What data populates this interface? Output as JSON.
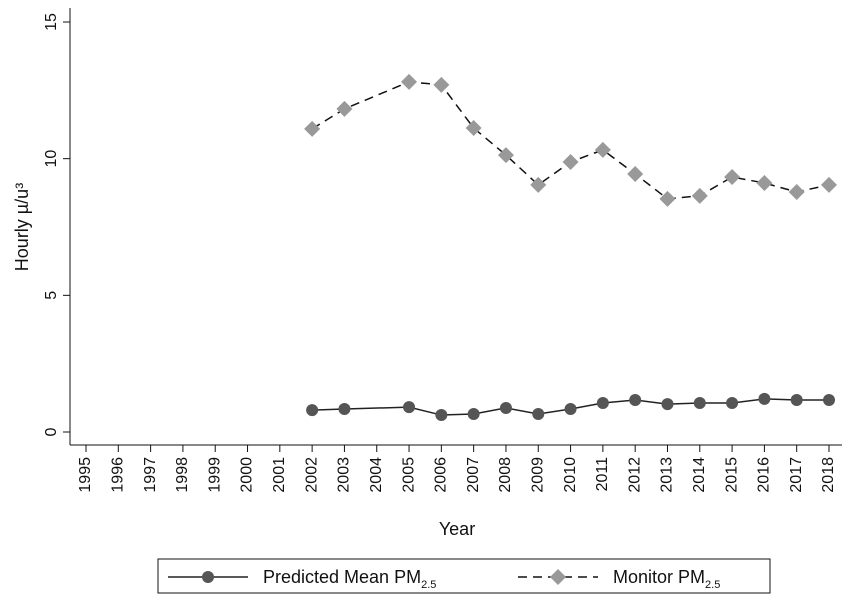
{
  "chart_data": {
    "type": "line",
    "x_label": "Year",
    "y_label": "Hourly µ/u³",
    "x": [
      2002,
      2003,
      2005,
      2006,
      2007,
      2008,
      2009,
      2010,
      2011,
      2012,
      2013,
      2014,
      2015,
      2016,
      2017,
      2018
    ],
    "series": [
      {
        "name": "Predicted Mean PM2.5",
        "color": "#555555",
        "line_color": "#222222",
        "line_style": "solid",
        "marker": "circle",
        "values": [
          0.8,
          0.84,
          0.91,
          0.62,
          0.66,
          0.88,
          0.66,
          0.84,
          1.06,
          1.17,
          1.02,
          1.06,
          1.06,
          1.21,
          1.17,
          1.17
        ]
      },
      {
        "name": "Monitor PM2.5",
        "color": "#999999",
        "line_color": "#111111",
        "line_style": "dashed",
        "marker": "diamond",
        "values": [
          11.09,
          11.82,
          12.81,
          12.7,
          11.12,
          10.13,
          9.04,
          9.88,
          10.32,
          9.44,
          8.53,
          8.64,
          9.33,
          9.11,
          8.78,
          9.04
        ]
      }
    ],
    "xlim": [
      1995,
      2018
    ],
    "xticks": [
      1995,
      1996,
      1997,
      1998,
      1999,
      2000,
      2001,
      2002,
      2003,
      2004,
      2005,
      2006,
      2007,
      2008,
      2009,
      2010,
      2011,
      2012,
      2013,
      2014,
      2015,
      2016,
      2017,
      2018
    ],
    "ylim": [
      0,
      15
    ],
    "yticks": [
      0,
      5,
      10,
      15
    ],
    "grid": false,
    "legend": "bottom"
  }
}
